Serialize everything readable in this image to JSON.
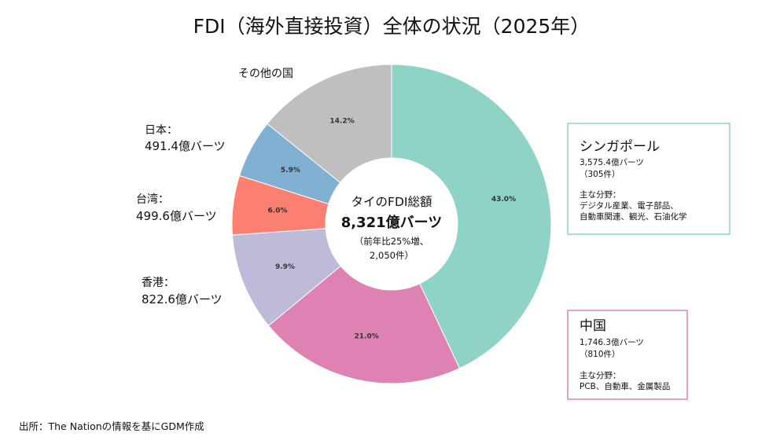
{
  "chart_data": {
    "type": "pie",
    "title": "FDI（海外直接投資）全体の状況（2025年）",
    "categories": [
      "シンガポール",
      "中国",
      "香港",
      "台湾",
      "日本",
      "その他の国"
    ],
    "values": [
      43.0,
      21.0,
      9.9,
      6.0,
      5.9,
      14.2
    ],
    "value_labels": [
      "43.0%",
      "21.0%",
      "9.9%",
      "6.0%",
      "5.9%",
      "14.2%"
    ],
    "colors": [
      "#8fd3c7",
      "#dd82b3",
      "#bebada",
      "#fb8072",
      "#80b1d3",
      "#bfbfbf"
    ],
    "donut": true
  },
  "center": {
    "line1": "タイのFDI総額",
    "line2": "8,321億バーツ",
    "line3": "（前年比25%増、",
    "line4": "2,050件）"
  },
  "labels": {
    "other": "その他の国",
    "japan_name": "日本：",
    "japan_value": "491.4億バーツ",
    "taiwan_name": "台湾：",
    "taiwan_value": "499.6億バーツ",
    "hongkong_name": "香港：",
    "hongkong_value": "822.6億バーツ"
  },
  "singapore_box": {
    "title": "シンガポール",
    "amount": "3,575.4億バーツ",
    "count": "（305件）",
    "sector_heading": "主な分野：",
    "sectors_1": "デジタル産業、電子部品、",
    "sectors_2": "自動車関連、観光、石油化学",
    "border_color": "#8fd3c7"
  },
  "china_box": {
    "title": "中国",
    "amount": "1,746.3億バーツ",
    "count": "（810件）",
    "sector_heading": "主な分野：",
    "sectors_1": "PCB、自動車、金属製品",
    "border_color": "#dd82b3"
  },
  "source": "出所：The Nationの情報を基にGDM作成"
}
